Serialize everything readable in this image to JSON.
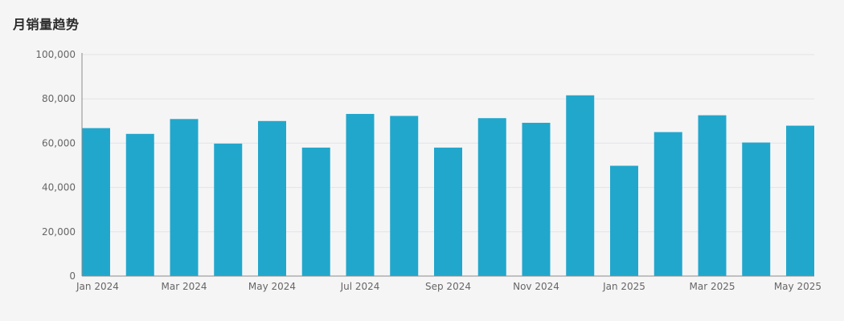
{
  "title": "月销量趋势",
  "colors": {
    "bar": "#22a7cc",
    "background": "#f5f5f6"
  },
  "chart_data": {
    "type": "bar",
    "title": "月销量趋势",
    "xlabel": "",
    "ylabel": "",
    "ylim": [
      0,
      100000
    ],
    "grid": true,
    "y_ticks": [
      0,
      20000,
      40000,
      60000,
      80000,
      100000
    ],
    "y_tick_labels": [
      "0",
      "20,000",
      "40,000",
      "60,000",
      "80,000",
      "100,000"
    ],
    "categories": [
      "2024-01",
      "2024-02",
      "2024-03",
      "2024-04",
      "2024-05",
      "2024-06",
      "2024-07",
      "2024-08",
      "2024-09",
      "2024-10",
      "2024-11",
      "2024-12",
      "2025-01",
      "2025-02",
      "2025-03",
      "2025-04",
      "2025-05"
    ],
    "x_tick_labels": [
      "Jan 2024",
      "",
      "Mar 2024",
      "",
      "May 2024",
      "",
      "Jul 2024",
      "",
      "Sep 2024",
      "",
      "Nov 2024",
      "",
      "Jan 2025",
      "",
      "Mar 2025",
      "",
      "May 2025"
    ],
    "values": [
      66800,
      64200,
      70900,
      59800,
      70000,
      58000,
      73200,
      72300,
      58000,
      71300,
      69200,
      81600,
      49800,
      65000,
      72600,
      60300,
      67900
    ]
  }
}
